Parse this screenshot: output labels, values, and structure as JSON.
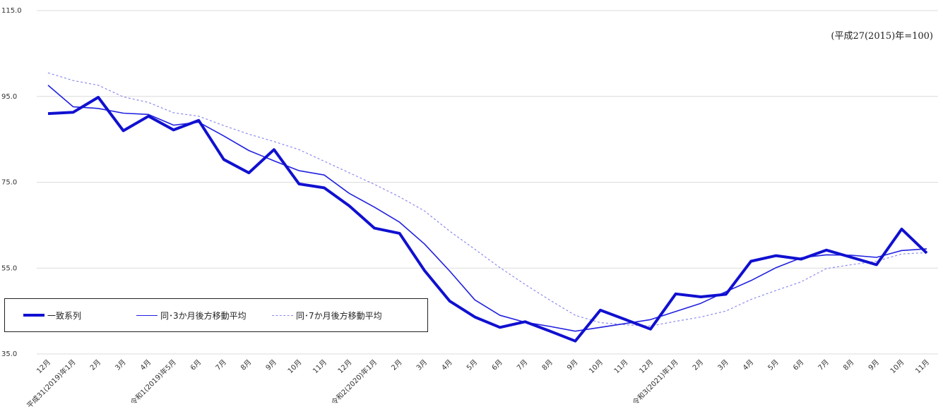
{
  "note": "(平成27(2015)年=100)",
  "colors": {
    "main": "#1010d0",
    "ma3": "#2020e0",
    "ma7": "#8a8af0",
    "grid": "#dcdcdc"
  },
  "chart_data": {
    "type": "line",
    "ylim": [
      35,
      115
    ],
    "yticks": [
      "35.0",
      "55.0",
      "75.0",
      "95.0",
      "115.0"
    ],
    "ytick_values": [
      35,
      55,
      75,
      95,
      115
    ],
    "categories": [
      "12月",
      "平成31(2019)年1月",
      "2月",
      "3月",
      "4月",
      "令和1(2019)年5月",
      "6月",
      "7月",
      "8月",
      "9月",
      "10月",
      "11月",
      "12月",
      "令和2(2020)年1月",
      "2月",
      "3月",
      "4月",
      "5月",
      "6月",
      "7月",
      "8月",
      "9月",
      "10月",
      "11月",
      "12月",
      "令和3(2021)年1月",
      "2月",
      "3月",
      "4月",
      "5月",
      "6月",
      "7月",
      "8月",
      "9月",
      "10月",
      "11月"
    ],
    "series": [
      {
        "name": "一致系列",
        "values": [
          91.0,
          91.3,
          94.8,
          87.0,
          90.4,
          87.2,
          89.4,
          80.3,
          77.2,
          82.6,
          74.6,
          73.7,
          69.5,
          64.3,
          63.1,
          54.4,
          47.3,
          43.6,
          41.2,
          42.5,
          40.3,
          38.0,
          45.2,
          43.0,
          40.8,
          49.0,
          48.3,
          48.9,
          56.6,
          57.9,
          57.1,
          59.2,
          57.5,
          55.8,
          64.1,
          58.5
        ]
      },
      {
        "name": "同･3か月後方移動平均",
        "values": [
          97.6,
          92.6,
          92.2,
          91.1,
          90.8,
          88.3,
          89.0,
          85.8,
          82.4,
          80.0,
          77.7,
          76.7,
          72.4,
          69.2,
          65.7,
          60.6,
          54.3,
          47.6,
          44.0,
          42.4,
          41.4,
          40.3,
          41.2,
          42.1,
          43.0,
          44.9,
          46.8,
          49.5,
          52.1,
          55.1,
          57.4,
          58.1,
          58.0,
          57.5,
          59.1,
          59.5
        ]
      },
      {
        "name": "同･7か月後方移動平均",
        "values": [
          100.5,
          98.7,
          97.6,
          94.9,
          93.6,
          91.2,
          90.4,
          88.2,
          86.2,
          84.5,
          82.6,
          79.9,
          77.2,
          74.5,
          71.6,
          68.3,
          63.6,
          59.4,
          55.1,
          51.2,
          47.5,
          44.0,
          42.3,
          41.8,
          41.5,
          42.6,
          43.6,
          45.0,
          47.7,
          49.8,
          51.8,
          54.9,
          55.8,
          56.6,
          58.3,
          58.6
        ]
      }
    ]
  }
}
